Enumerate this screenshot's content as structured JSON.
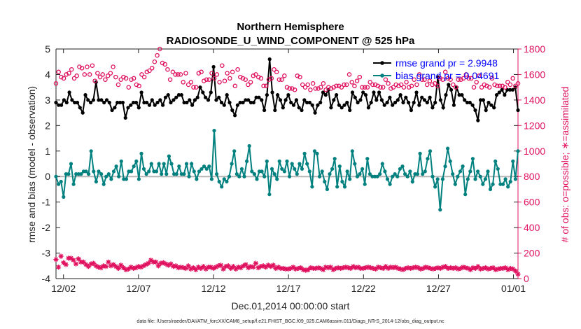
{
  "chart_data": {
    "type": "line",
    "title": "Northern Hemisphere",
    "subtitle": "RADIOSONDE_U_WIND_COMPONENT @ 525 hPa",
    "xlabel": "Dec.01,2014 00:00:00 start",
    "ylabel": "rmse and bias (model - observation)",
    "y2label": "# of obs: o=possible; ∗=assimilated",
    "footnote": "data file: /Users/raeder/DAI/ATM_forcXX/CAM6_setup/f.e21.FHIST_BGC.f09_025.CAM6assim.011/Diags_NTrS_2014-12/obs_diag_output.nc",
    "x_tick_values": [
      1.5,
      6.5,
      11.5,
      16.5,
      21.5,
      26.5,
      31.5
    ],
    "x_tick_labels": [
      "12/02",
      "12/07",
      "12/12",
      "12/17",
      "12/22",
      "12/27",
      "01/01"
    ],
    "xlim": [
      1,
      31.8
    ],
    "ylim": [
      -4,
      5
    ],
    "y_ticks": [
      -4,
      -3,
      -2,
      -1,
      0,
      1,
      2,
      3,
      4,
      5
    ],
    "y2lim": [
      0,
      1800
    ],
    "y2_ticks": [
      0,
      200,
      400,
      600,
      800,
      1000,
      1200,
      1400,
      1600,
      1800
    ],
    "zero_line": 0,
    "series": [
      {
        "name": "rmse",
        "legend": "rmse grand pr = 2.9948",
        "axis": "left",
        "color": "#000000",
        "marker": "filled-circle",
        "values": [
          2.9,
          2.8,
          2.8,
          3.0,
          2.9,
          3.3,
          3.0,
          2.9,
          2.9,
          2.7,
          2.5,
          3.2,
          3.0,
          2.9,
          3.0,
          3.7,
          3.0,
          3.0,
          2.9,
          3.0,
          2.9,
          2.6,
          2.7,
          2.9,
          2.9,
          2.9,
          2.3,
          2.7,
          2.8,
          2.9,
          2.9,
          2.7,
          3.3,
          2.9,
          2.9,
          2.8,
          3.0,
          2.8,
          2.9,
          3.0,
          2.8,
          3.1,
          3.2,
          2.9,
          3.0,
          3.1,
          3.2,
          3.2,
          2.9,
          2.9,
          3.0,
          2.8,
          3.0,
          3.1,
          3.5,
          3.3,
          3.1,
          3.0,
          3.3,
          4.3,
          3.0,
          3.1,
          2.9,
          2.8,
          3.2,
          2.9,
          2.6,
          2.4,
          2.8,
          2.9,
          2.9,
          3.0,
          3.0,
          2.9,
          2.9,
          3.1,
          3.1,
          3.0,
          2.6,
          3.2,
          4.6,
          3.3,
          2.6,
          3.2,
          3.0,
          2.7,
          3.0,
          3.2,
          2.9,
          2.8,
          3.0,
          2.7,
          2.6,
          3.0,
          2.9,
          2.9,
          2.8,
          2.5,
          2.8,
          2.9,
          3.3,
          3.2,
          3.4,
          2.7,
          3.0,
          3.2,
          2.8,
          2.7,
          2.8,
          2.9,
          2.6,
          3.3,
          3.1,
          2.9,
          3.0,
          3.3,
          3.2,
          2.7,
          2.9,
          3.3,
          3.0,
          3.3,
          3.0,
          2.8,
          2.9,
          3.1,
          2.8,
          2.9,
          3.0,
          3.2,
          2.9,
          3.1,
          2.9,
          2.6,
          2.9,
          3.3,
          2.8,
          3.1,
          3.0,
          2.9,
          3.1,
          2.7,
          2.9,
          3.9,
          3.0,
          2.7,
          3.2,
          3.6,
          3.4,
          2.8,
          3.5,
          3.2,
          3.2,
          3.0,
          2.9,
          2.9,
          2.8,
          2.6,
          2.2,
          3.0,
          3.0,
          2.6,
          2.9,
          2.8,
          2.7,
          3.2,
          3.3,
          3.4,
          3.2,
          3.4,
          3.4,
          3.4,
          3.5,
          2.6
        ]
      },
      {
        "name": "bias",
        "legend": "bias grand pr = 0.04691",
        "axis": "left",
        "color": "#00807f",
        "marker": "filled-circle",
        "values": [
          0.0,
          -0.3,
          -0.2,
          -0.8,
          0.1,
          0.1,
          0.5,
          -0.3,
          0.1,
          0.1,
          0.1,
          0.2,
          0.2,
          0.1,
          1.0,
          0.2,
          -0.2,
          0.2,
          0.1,
          -0.3,
          0.0,
          0.1,
          -0.1,
          0.2,
          0.4,
          0.0,
          0.6,
          -0.1,
          -0.1,
          0.2,
          0.2,
          0.4,
          0.6,
          -0.1,
          0.9,
          0.3,
          0.1,
          0.2,
          0.5,
          0.2,
          0.2,
          0.5,
          0.1,
          0.5,
          0.1,
          0.8,
          0.5,
          0.1,
          0.1,
          0.4,
          0.1,
          0.1,
          0.5,
          0.0,
          0.5,
          0.2,
          -0.1,
          0.2,
          0.3,
          0.4,
          0.3,
          0.4,
          -0.1,
          1.8,
          0.1,
          -0.2,
          -0.4,
          -0.1,
          -0.2,
          0.0,
          0.5,
          1.0,
          0.1,
          0.0,
          0.3,
          0.0,
          0.6,
          1.2,
          0.2,
          0.1,
          -0.1,
          0.2,
          0.2,
          0.0,
          0.6,
          -0.7,
          0.3,
          0.1,
          -0.1,
          0.6,
          0.3,
          0.2,
          0.6,
          0.0,
          0.5,
          0.3,
          0.1,
          0.5,
          0.3,
          0.9,
          0.5,
          0.2,
          -0.4,
          1.0,
          0.9,
          0.0,
          0.2,
          -0.2,
          -0.5,
          0.1,
          0.3,
          0.7,
          -0.4,
          0.4,
          -0.2,
          -0.4,
          0.2,
          -0.1,
          1.0,
          0.5,
          0.0,
          0.1,
          0.3,
          -0.3,
          0.7,
          0.1,
          0.0,
          0.0,
          0.0,
          0.1,
          0.5,
          0.2,
          -0.1,
          -0.3,
          0.0,
          0.1,
          0.0,
          0.3,
          0.4,
          0.1,
          0.0,
          0.2,
          -0.2,
          0.1,
          0.1,
          0.9,
          0.1,
          0.2,
          0.7,
          1.0,
          0.0,
          -0.4,
          -0.1,
          -1.3,
          -0.1,
          0.4,
          1.1,
          0.6,
          0.1,
          -0.3,
          0.0,
          0.2,
          0.4,
          -0.7,
          -0.1,
          0.2,
          0.7,
          -0.1,
          0.2,
          0.0,
          -0.3,
          -0.1,
          0.2,
          -0.5,
          -0.3,
          0.6,
          0.3,
          -0.3,
          -0.3,
          -0.1,
          -0.4,
          -0.2,
          0.6,
          -0.1,
          1.0
        ]
      },
      {
        "name": "possible",
        "axis": "right",
        "color": "#e0115f",
        "marker": "open-circle",
        "values": [
          1530,
          1620,
          1580,
          1570,
          1600,
          1610,
          1640,
          1570,
          1590,
          1660,
          1650,
          1600,
          1660,
          1600,
          1670,
          1550,
          1610,
          1580,
          1600,
          1560,
          1590,
          1610,
          1660,
          1580,
          1520,
          1560,
          1580,
          1570,
          1500,
          1560,
          1570,
          1520,
          1510,
          1600,
          1580,
          1620,
          1630,
          1650,
          1700,
          1750,
          1800,
          1690,
          1680,
          1640,
          1560,
          1620,
          1600,
          1600,
          1600,
          1540,
          1610,
          1520,
          1540,
          1500,
          1500,
          1610,
          1620,
          1550,
          1560,
          1560,
          1610,
          1570,
          1600,
          1540,
          1670,
          1550,
          1610,
          1570,
          1620,
          1510,
          1640,
          1580,
          1570,
          1560,
          1520,
          1540,
          1590,
          1600,
          1580,
          1570,
          1510,
          1510,
          1560,
          1570,
          1640,
          1620,
          1560,
          1560,
          1590,
          1500,
          1490,
          1490,
          1480,
          1590,
          1580,
          1520,
          1500,
          1520,
          1480,
          1530,
          1490,
          1490,
          1500,
          1530,
          1480,
          1500,
          1490,
          1500,
          1510,
          1510,
          1500,
          1520,
          1520,
          1600,
          1540,
          1510,
          1550,
          1580,
          1500,
          1500,
          1500,
          1540,
          1520,
          1520,
          1510,
          1500,
          1500,
          1560,
          1530,
          1490,
          1500,
          1520,
          1510,
          1520,
          1500,
          1540,
          1500,
          1510,
          1560,
          1520,
          1600,
          1560,
          1560,
          1520,
          1550,
          1520,
          1530,
          1510,
          1570,
          1560,
          1620,
          1570,
          1560,
          1520,
          1500,
          1560,
          1560,
          1570,
          1600,
          1570,
          1570,
          1500,
          1540,
          1590,
          1500,
          1520,
          1510,
          1500,
          1570,
          1520,
          1510,
          1510,
          1510,
          1500,
          1540,
          1520,
          1570,
          1510,
          1530
        ]
      },
      {
        "name": "assimilated",
        "axis": "right",
        "color": "#e0115f",
        "marker": "asterisk",
        "values": [
          150,
          90,
          175,
          125,
          110,
          160,
          160,
          145,
          115,
          155,
          130,
          130,
          110,
          95,
          115,
          120,
          100,
          90,
          85,
          100,
          95,
          130,
          100,
          110,
          95,
          80,
          105,
          85,
          70,
          75,
          90,
          80,
          85,
          95,
          90,
          100,
          110,
          120,
          145,
          130,
          130,
          100,
          120,
          125,
          115,
          105,
          115,
          95,
          100,
          85,
          90,
          85,
          80,
          100,
          75,
          85,
          70,
          90,
          80,
          95,
          75,
          90,
          90,
          80,
          90,
          100,
          105,
          75,
          95,
          100,
          80,
          95,
          75,
          90,
          85,
          100,
          110,
          85,
          95,
          90,
          120,
          85,
          95,
          100,
          90,
          105,
          95,
          105,
          80,
          90,
          80,
          80,
          75,
          75,
          80,
          90,
          75,
          80,
          85,
          70,
          65,
          70,
          85,
          80,
          80,
          85,
          80,
          70,
          90,
          85,
          90,
          70,
          80,
          85,
          80,
          85,
          90,
          85,
          80,
          95,
          85,
          90,
          80,
          80,
          85,
          90,
          85,
          80,
          75,
          90,
          85,
          80,
          95,
          80,
          90,
          85,
          90,
          80,
          75,
          70,
          80,
          85,
          80,
          85,
          90,
          85,
          75,
          80,
          90,
          85,
          80,
          75,
          80,
          85,
          80,
          90,
          95,
          80,
          85,
          80,
          85,
          75,
          80,
          90,
          85,
          80,
          70,
          85,
          80,
          95,
          75,
          80,
          85,
          75,
          80,
          85,
          70,
          75,
          80,
          80,
          85,
          70,
          80,
          75,
          60,
          35
        ]
      }
    ]
  }
}
